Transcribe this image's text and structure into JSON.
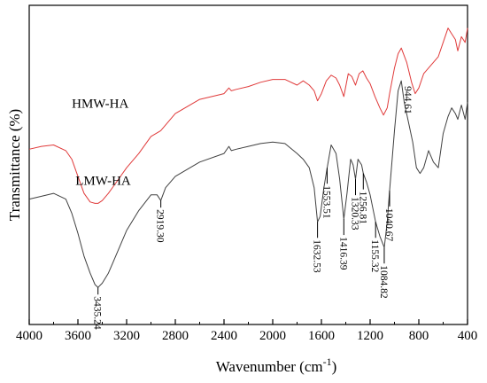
{
  "chart_data": {
    "type": "line",
    "xlabel": "Wavenumber (cm",
    "xlabel_sup": "-1",
    "xlabel_close": ")",
    "ylabel": "Transmittance (%)",
    "xlim": [
      4000,
      400
    ],
    "x_reversed": true,
    "y_ticks_shown": false,
    "x_ticks": [
      4000,
      3600,
      3200,
      2800,
      2400,
      2000,
      1600,
      1200,
      800,
      400
    ],
    "grid": false,
    "series": [
      {
        "name": "HMW-HA",
        "color": "#e03a3a",
        "x": [
          4000,
          3900,
          3800,
          3700,
          3650,
          3600,
          3550,
          3500,
          3460,
          3435,
          3400,
          3350,
          3300,
          3200,
          3100,
          3000,
          2920,
          2800,
          2600,
          2400,
          2360,
          2340,
          2300,
          2200,
          2100,
          2000,
          1900,
          1800,
          1750,
          1700,
          1660,
          1632,
          1600,
          1560,
          1520,
          1480,
          1450,
          1416,
          1380,
          1350,
          1320,
          1290,
          1260,
          1230,
          1200,
          1160,
          1120,
          1090,
          1060,
          1040,
          1000,
          970,
          944,
          900,
          860,
          830,
          800,
          760,
          720,
          680,
          640,
          600,
          560,
          530,
          500,
          480,
          450,
          420,
          400
        ],
        "y": [
          49.5,
          50.5,
          51,
          49,
          46,
          40,
          34,
          31,
          30.5,
          30.5,
          31.5,
          34,
          37,
          43,
          48,
          54,
          56,
          62,
          67,
          69,
          71,
          70,
          70.5,
          71.5,
          73,
          74,
          74,
          72,
          73.5,
          72,
          70,
          66.5,
          69,
          73.5,
          75.5,
          74.5,
          72,
          68,
          76,
          75,
          72,
          76,
          77,
          74.5,
          72.5,
          68,
          64,
          61.5,
          64,
          69,
          78,
          83,
          85,
          80,
          73,
          69,
          71,
          76,
          78,
          80,
          82,
          87,
          92,
          90,
          88,
          84,
          89,
          87,
          92
        ]
      },
      {
        "name": "LMW-HA",
        "color": "#404040",
        "x": [
          4000,
          3900,
          3800,
          3700,
          3650,
          3600,
          3550,
          3500,
          3460,
          3435,
          3400,
          3350,
          3300,
          3200,
          3100,
          3000,
          2950,
          2919,
          2880,
          2800,
          2600,
          2400,
          2360,
          2340,
          2300,
          2200,
          2100,
          2000,
          1900,
          1800,
          1750,
          1700,
          1660,
          1632,
          1610,
          1580,
          1553,
          1520,
          1480,
          1450,
          1416,
          1390,
          1360,
          1340,
          1320,
          1300,
          1270,
          1256,
          1230,
          1200,
          1155,
          1120,
          1084,
          1060,
          1040,
          1000,
          970,
          944,
          920,
          880,
          850,
          820,
          790,
          760,
          720,
          680,
          640,
          600,
          560,
          530,
          500,
          480,
          450,
          420,
          400
        ],
        "y": [
          32,
          33,
          34,
          32,
          27,
          20,
          12,
          6,
          2,
          1,
          2.5,
          6,
          11,
          21,
          28,
          33.5,
          33.5,
          31.5,
          36,
          40,
          45,
          48,
          50.5,
          49,
          49.5,
          50.5,
          51.5,
          52,
          51.5,
          48,
          46,
          43,
          36,
          24,
          26,
          36,
          43,
          51,
          48,
          39,
          25,
          34,
          46,
          44,
          39,
          46,
          44,
          41,
          38,
          33.5,
          24,
          19,
          15,
          24,
          35,
          56,
          70,
          73.5,
          66,
          58,
          52,
          43,
          41,
          43,
          49,
          45,
          43,
          55,
          61,
          64,
          62,
          60,
          65,
          60,
          66
        ]
      }
    ],
    "series_labels": [
      {
        "text": "HMW-HA",
        "x": 3650,
        "y": 64
      },
      {
        "text": "LMW-HA",
        "x": 3620,
        "y": 37
      }
    ],
    "annotations": [
      {
        "label": "3435.24",
        "x": 3435,
        "series": 1
      },
      {
        "label": "2919.30",
        "x": 2919,
        "series": 1
      },
      {
        "label": "1632.53",
        "x": 1632,
        "series": 1
      },
      {
        "label": "1553.51",
        "x": 1553,
        "series": 1
      },
      {
        "label": "1416.39",
        "x": 1416,
        "series": 1
      },
      {
        "label": "1320.33",
        "x": 1320,
        "series": 1
      },
      {
        "label": "1256.81",
        "x": 1256,
        "series": 1
      },
      {
        "label": "1155.32",
        "x": 1155,
        "series": 1
      },
      {
        "label": "1084.82",
        "x": 1084,
        "series": 1
      },
      {
        "label": "1040.67",
        "x": 1040,
        "series": 1
      },
      {
        "label": "944.61",
        "x": 944,
        "series": 1
      }
    ]
  }
}
